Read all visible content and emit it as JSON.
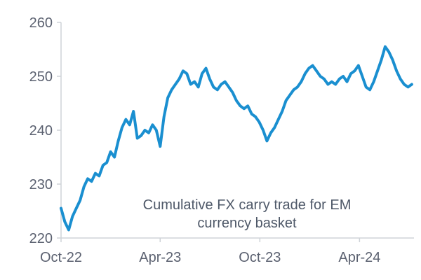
{
  "chart_data": {
    "type": "line",
    "title": "",
    "xlabel": "",
    "ylabel": "",
    "ylim": [
      220,
      260
    ],
    "yticks": [
      220,
      230,
      240,
      250,
      260
    ],
    "xticks": [
      "Oct-22",
      "Apr-23",
      "Oct-23",
      "Apr-24"
    ],
    "xlim": [
      "2022-10-01",
      "2024-07-10"
    ],
    "grid": false,
    "legend": "none",
    "annotation": [
      "Cumulative FX carry trade for EM",
      "currency basket"
    ],
    "colors": {
      "line": "#1a8fd0",
      "axis": "#cfd3d8",
      "text": "#5b6170"
    },
    "series": [
      {
        "x": [
          "2022-10-01",
          "2022-10-08",
          "2022-10-15",
          "2022-10-22",
          "2022-10-29",
          "2022-11-05",
          "2022-11-12",
          "2022-11-19",
          "2022-11-26",
          "2022-12-03",
          "2022-12-10",
          "2022-12-17",
          "2022-12-24",
          "2022-12-31",
          "2023-01-07",
          "2023-01-14",
          "2023-01-21",
          "2023-01-28",
          "2023-02-04",
          "2023-02-11",
          "2023-02-18",
          "2023-02-25",
          "2023-03-04",
          "2023-03-11",
          "2023-03-18",
          "2023-03-25",
          "2023-04-01",
          "2023-04-08",
          "2023-04-15",
          "2023-04-22",
          "2023-04-29",
          "2023-05-06",
          "2023-05-13",
          "2023-05-20",
          "2023-05-27",
          "2023-06-03",
          "2023-06-10",
          "2023-06-17",
          "2023-06-24",
          "2023-07-01",
          "2023-07-08",
          "2023-07-15",
          "2023-07-22",
          "2023-07-29",
          "2023-08-05",
          "2023-08-12",
          "2023-08-19",
          "2023-08-26",
          "2023-09-02",
          "2023-09-09",
          "2023-09-16",
          "2023-09-23",
          "2023-09-30",
          "2023-10-07",
          "2023-10-14",
          "2023-10-21",
          "2023-10-28",
          "2023-11-04",
          "2023-11-11",
          "2023-11-18",
          "2023-11-25",
          "2023-12-02",
          "2023-12-09",
          "2023-12-16",
          "2023-12-23",
          "2023-12-30",
          "2024-01-06",
          "2024-01-13",
          "2024-01-20",
          "2024-01-27",
          "2024-02-03",
          "2024-02-10",
          "2024-02-17",
          "2024-02-24",
          "2024-03-02",
          "2024-03-09",
          "2024-03-16",
          "2024-03-23",
          "2024-03-30",
          "2024-04-06",
          "2024-04-13",
          "2024-04-20",
          "2024-04-27",
          "2024-05-04",
          "2024-05-11",
          "2024-05-18",
          "2024-05-25",
          "2024-06-01",
          "2024-06-08",
          "2024-06-15",
          "2024-06-22",
          "2024-06-29",
          "2024-07-06"
        ],
        "values": [
          225.5,
          223.0,
          221.5,
          224.0,
          225.5,
          227.0,
          229.5,
          231.0,
          230.5,
          232.0,
          231.5,
          233.5,
          234.0,
          236.0,
          235.0,
          238.0,
          240.5,
          242.0,
          241.0,
          243.5,
          238.5,
          239.0,
          240.0,
          239.5,
          241.0,
          240.0,
          237.0,
          242.5,
          246.0,
          247.5,
          248.5,
          249.5,
          251.0,
          250.5,
          248.5,
          249.0,
          248.0,
          250.5,
          251.5,
          249.5,
          248.0,
          247.5,
          248.5,
          249.0,
          248.0,
          247.0,
          245.5,
          244.5,
          244.0,
          244.5,
          243.0,
          242.5,
          241.5,
          240.0,
          238.0,
          239.5,
          240.5,
          242.0,
          243.5,
          245.5,
          246.5,
          247.5,
          248.0,
          249.0,
          250.5,
          251.5,
          252.0,
          251.0,
          250.0,
          249.5,
          248.5,
          249.0,
          248.5,
          249.5,
          250.0,
          249.0,
          250.5,
          251.0,
          252.0,
          250.0,
          248.0,
          247.5,
          249.0,
          251.0,
          253.0,
          255.5,
          254.5,
          253.0,
          251.0,
          249.5,
          248.5,
          248.0,
          248.5
        ]
      }
    ]
  }
}
